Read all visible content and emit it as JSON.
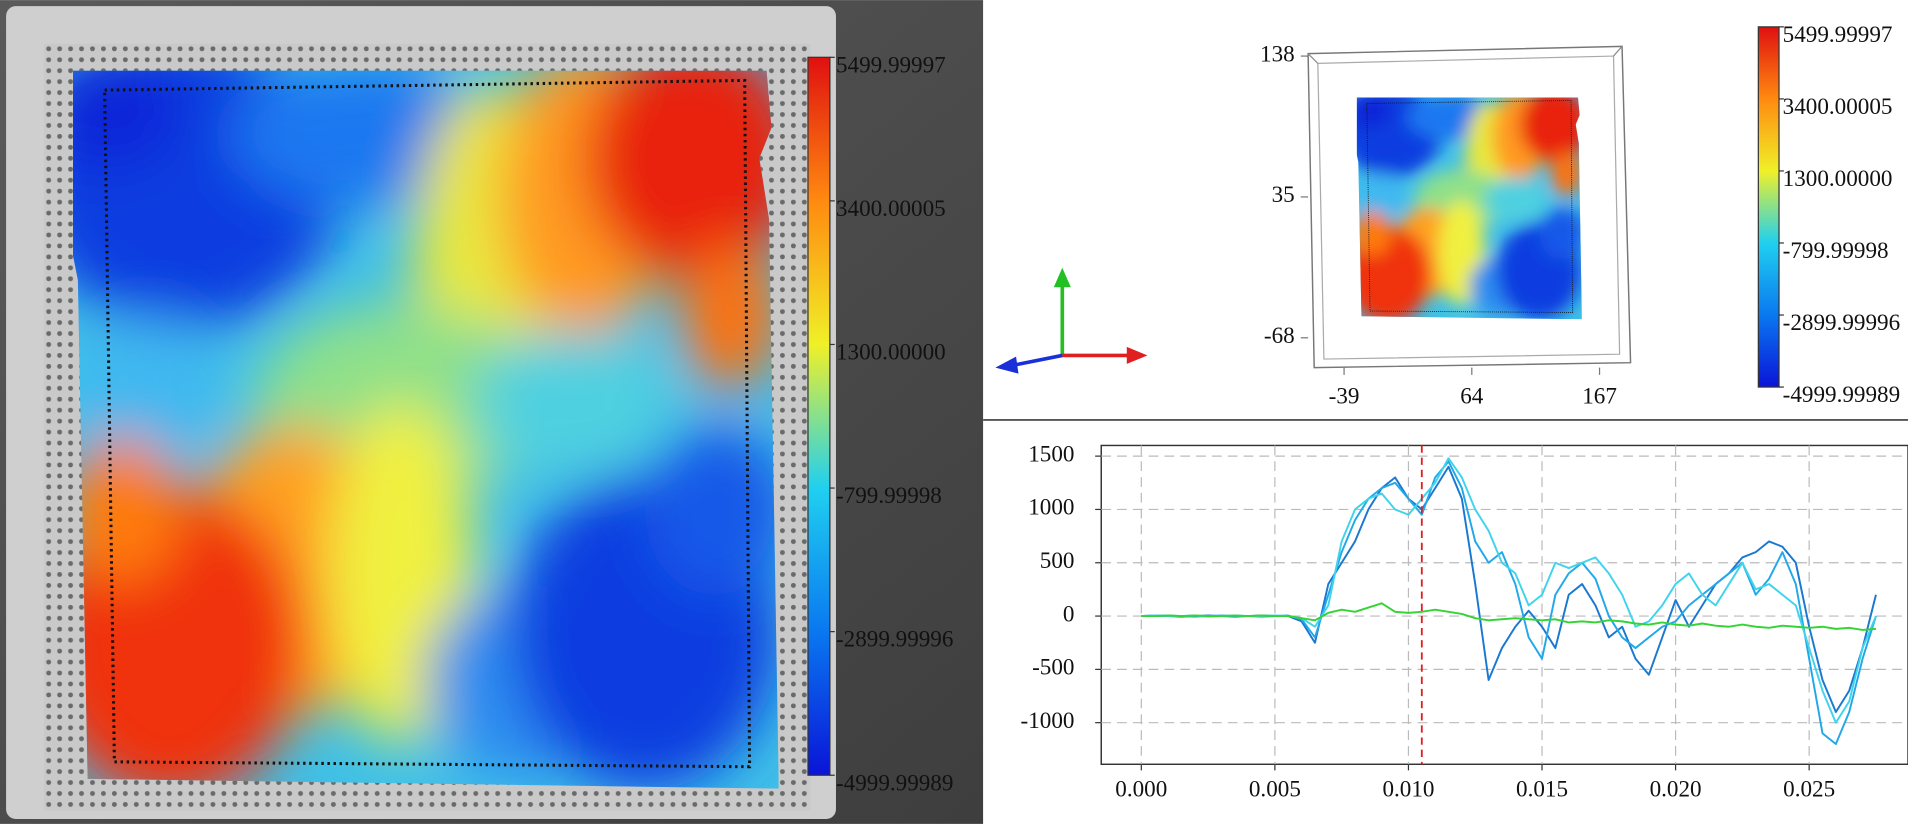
{
  "chart_data": [
    {
      "type": "heatmap",
      "colormap": [
        "#0a14d8",
        "#0a78f0",
        "#20d0f0",
        "#f0f028",
        "#ff8a10",
        "#e01010"
      ],
      "colorbar": {
        "lim": [
          -4999.99989,
          5499.99997
        ],
        "ticks": [
          5499.99997,
          3400.00005,
          {
            "value": 1300,
            "label": "1300.00000"
          },
          -799.99998,
          -2899.99996,
          -4999.99989
        ]
      }
    },
    {
      "type": "surface3d",
      "xlim": [
        -68,
        192
      ],
      "xticks": [
        -39,
        64,
        167
      ],
      "ylim": [
        -88,
        138
      ],
      "yticks": [
        -68,
        35,
        138
      ],
      "colormap": [
        "#0a14d8",
        "#0a78f0",
        "#20d0f0",
        "#f0f028",
        "#ff8a10",
        "#e01010"
      ],
      "colorbar": {
        "lim": [
          -4999.99989,
          5499.99997
        ],
        "ticks": [
          5499.99997,
          3400.00005,
          {
            "value": 1300,
            "label": "1300.00000"
          },
          -799.99998,
          -2899.99996,
          -4999.99989
        ]
      }
    },
    {
      "type": "line",
      "x": [
        0,
        0.0005,
        0.001,
        0.0015,
        0.002,
        0.0025,
        0.003,
        0.0035,
        0.004,
        0.0045,
        0.005,
        0.0055,
        0.006,
        0.0065,
        0.007,
        0.0075,
        0.008,
        0.0085,
        0.009,
        0.0095,
        0.01,
        0.0105,
        0.011,
        0.0115,
        0.012,
        0.0125,
        0.013,
        0.0135,
        0.014,
        0.0145,
        0.015,
        0.0155,
        0.016,
        0.0165,
        0.017,
        0.0175,
        0.018,
        0.0185,
        0.019,
        0.0195,
        0.02,
        0.0205,
        0.021,
        0.0215,
        0.022,
        0.0225,
        0.023,
        0.0235,
        0.024,
        0.0245,
        0.025,
        0.0255,
        0.026,
        0.0265,
        0.027,
        0.0275
      ],
      "series": [
        {
          "color": "#1a78d0",
          "values": [
            0,
            5,
            0,
            -5,
            0,
            5,
            0,
            -5,
            0,
            5,
            0,
            0,
            -50,
            -250,
            300,
            500,
            700,
            1000,
            1200,
            1300,
            1100,
            1000,
            1200,
            1400,
            1100,
            300,
            -600,
            -300,
            -100,
            50,
            -100,
            -300,
            200,
            300,
            100,
            -200,
            -100,
            -400,
            -550,
            -200,
            150,
            -100,
            100,
            300,
            400,
            550,
            600,
            700,
            650,
            500,
            -100,
            -600,
            -900,
            -700,
            -300,
            200
          ]
        },
        {
          "color": "#22a8e8",
          "values": [
            0,
            0,
            5,
            0,
            -5,
            0,
            5,
            0,
            0,
            -5,
            0,
            5,
            -30,
            -200,
            200,
            600,
            900,
            1100,
            1200,
            1250,
            1100,
            950,
            1300,
            1450,
            1200,
            700,
            500,
            600,
            300,
            -200,
            -400,
            200,
            400,
            500,
            350,
            0,
            -200,
            -300,
            -200,
            -100,
            -50,
            100,
            200,
            300,
            400,
            500,
            200,
            350,
            600,
            300,
            -400,
            -1100,
            -1200,
            -900,
            -400,
            0
          ]
        },
        {
          "color": "#3fd4ec",
          "values": [
            0,
            5,
            0,
            0,
            5,
            -5,
            0,
            5,
            0,
            0,
            5,
            0,
            -20,
            -100,
            100,
            700,
            1000,
            1100,
            1150,
            1000,
            950,
            1100,
            1250,
            1480,
            1300,
            1000,
            800,
            500,
            400,
            100,
            200,
            500,
            450,
            500,
            550,
            400,
            200,
            -100,
            -50,
            100,
            300,
            400,
            200,
            100,
            300,
            500,
            250,
            300,
            200,
            100,
            -300,
            -700,
            -1000,
            -800,
            -300,
            0
          ]
        },
        {
          "color": "#34d434",
          "values": [
            0,
            0,
            5,
            0,
            5,
            0,
            0,
            5,
            0,
            5,
            0,
            0,
            -20,
            -40,
            30,
            60,
            40,
            80,
            120,
            40,
            30,
            40,
            60,
            40,
            20,
            -20,
            -40,
            -30,
            -20,
            -30,
            -40,
            -30,
            -60,
            -50,
            -60,
            -40,
            -50,
            -70,
            -80,
            -60,
            -80,
            -90,
            -70,
            -90,
            -100,
            -80,
            -100,
            -110,
            -90,
            -100,
            -110,
            -100,
            -120,
            -110,
            -130,
            -120
          ]
        }
      ],
      "xlim": [
        -0.0015,
        0.0287
      ],
      "xticks": [
        {
          "value": 0,
          "label": "0.000"
        },
        0.005,
        {
          "value": 0.01,
          "label": "0.010"
        },
        0.015,
        {
          "value": 0.02,
          "label": "0.020"
        },
        0.025
      ],
      "ylim": [
        -1390,
        1600
      ],
      "yticks": [
        -1000,
        -500,
        0,
        500,
        1000,
        1500
      ],
      "grid": true,
      "cursor_x": 0.0105,
      "cursor_color": "#e02020"
    }
  ]
}
